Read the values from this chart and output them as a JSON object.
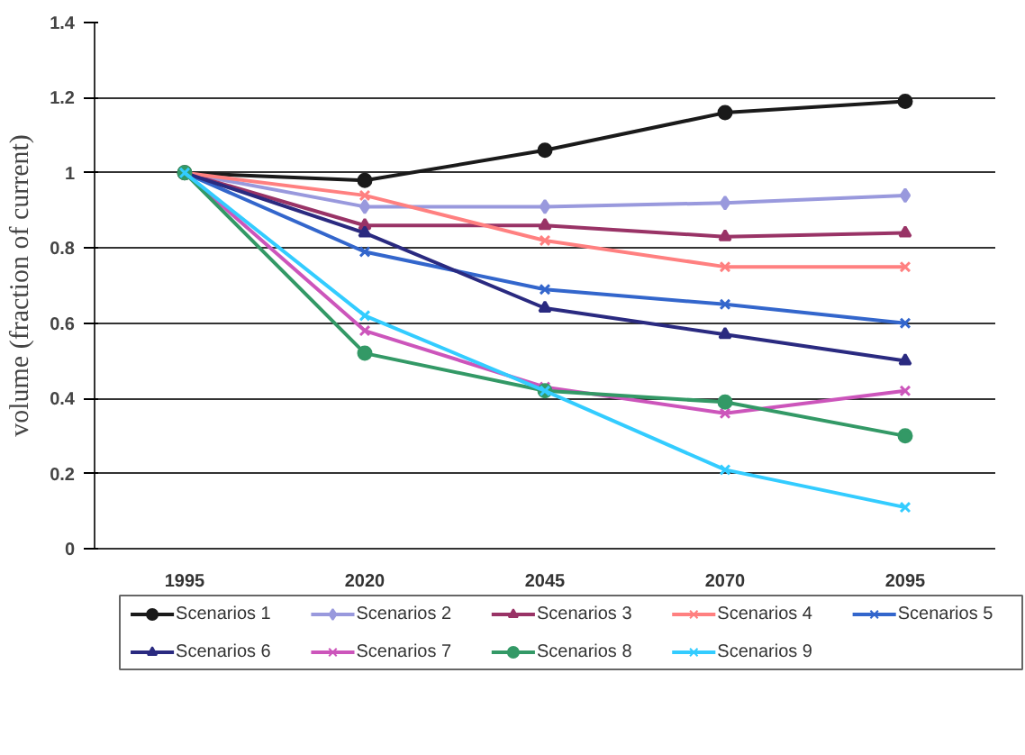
{
  "chart_data": {
    "type": "line",
    "ylabel": "volume (fraction of current)",
    "categories": [
      "1995",
      "2020",
      "2045",
      "2070",
      "2095"
    ],
    "ylim": [
      0,
      1.4
    ],
    "yticks": [
      0,
      0.2,
      0.4,
      0.6,
      0.8,
      1,
      1.2,
      1.4
    ],
    "grid": "y",
    "legend": "bottom",
    "series": [
      {
        "name": "Scenarios 1",
        "color": "#1a1a1a",
        "marker": "circle",
        "values": [
          1,
          0.98,
          1.06,
          1.16,
          1.19
        ]
      },
      {
        "name": "Scenarios 2",
        "color": "#9999dd",
        "marker": "diamond",
        "values": [
          1,
          0.91,
          0.91,
          0.92,
          0.94
        ]
      },
      {
        "name": "Scenarios 3",
        "color": "#993366",
        "marker": "triangle",
        "values": [
          1,
          0.86,
          0.86,
          0.83,
          0.84
        ]
      },
      {
        "name": "Scenarios 4",
        "color": "#ff8080",
        "marker": "cross",
        "values": [
          1,
          0.94,
          0.82,
          0.75,
          0.75
        ]
      },
      {
        "name": "Scenarios 5",
        "color": "#3366cc",
        "marker": "cross",
        "values": [
          1,
          0.79,
          0.69,
          0.65,
          0.6
        ]
      },
      {
        "name": "Scenarios 6",
        "color": "#2a2a80",
        "marker": "triangle",
        "values": [
          1,
          0.84,
          0.64,
          0.57,
          0.5
        ]
      },
      {
        "name": "Scenarios 7",
        "color": "#cc55bb",
        "marker": "cross",
        "values": [
          1,
          0.58,
          0.43,
          0.36,
          0.42
        ]
      },
      {
        "name": "Scenarios 8",
        "color": "#339966",
        "marker": "circle",
        "values": [
          1,
          0.52,
          0.42,
          0.39,
          0.3
        ]
      },
      {
        "name": "Scenarios 9",
        "color": "#33ccff",
        "marker": "cross",
        "values": [
          1,
          0.62,
          0.42,
          0.21,
          0.11
        ]
      }
    ]
  }
}
